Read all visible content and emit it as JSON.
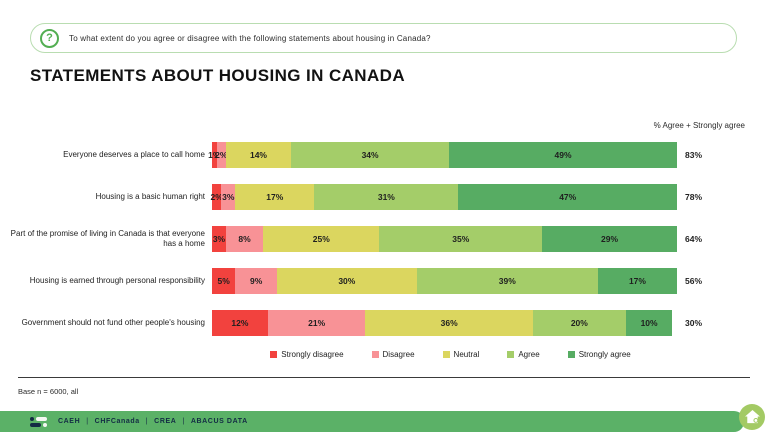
{
  "question_bar": {
    "text": "To what extent do you agree or disagree with the following statements about housing in Canada?",
    "icon_glyph": "?"
  },
  "page_title": "STATEMENTS ABOUT HOUSING IN CANADA",
  "chart_data": {
    "type": "bar",
    "variant": "stacked-horizontal",
    "annotation": "% Agree + Strongly agree",
    "categories": [
      "Everyone deserves a place to call home",
      "Housing is a basic human right",
      "Part of the promise of living in Canada is that everyone has a home",
      "Housing is earned through personal responsibility",
      "Government should not fund other people's housing"
    ],
    "series": [
      {
        "name": "Strongly disagree",
        "color": "#f2423e",
        "values": [
          1,
          2,
          3,
          5,
          12
        ]
      },
      {
        "name": "Disagree",
        "color": "#f89296",
        "values": [
          2,
          3,
          8,
          9,
          21
        ]
      },
      {
        "name": "Neutral",
        "color": "#dbd65f",
        "values": [
          14,
          17,
          25,
          30,
          36
        ]
      },
      {
        "name": "Agree",
        "color": "#a4cd69",
        "values": [
          34,
          31,
          35,
          39,
          20
        ]
      },
      {
        "name": "Strongly agree",
        "color": "#57ac63",
        "values": [
          49,
          47,
          29,
          17,
          10
        ]
      }
    ],
    "totals": [
      83,
      78,
      64,
      56,
      30
    ],
    "value_suffix": "%",
    "xlim": [
      0,
      100
    ],
    "legend_position": "bottom"
  },
  "base_note": "Base n = 6000, all",
  "footer": {
    "orgs": [
      "CAEH",
      "CHFCanada",
      "CREA",
      "ABACUS DATA"
    ],
    "separator": "|"
  },
  "colors": {
    "footer_green": "#5bb167",
    "pill_border": "#b9ddb1",
    "icon_green": "#53ae52",
    "badge_green": "#a3ca64"
  }
}
